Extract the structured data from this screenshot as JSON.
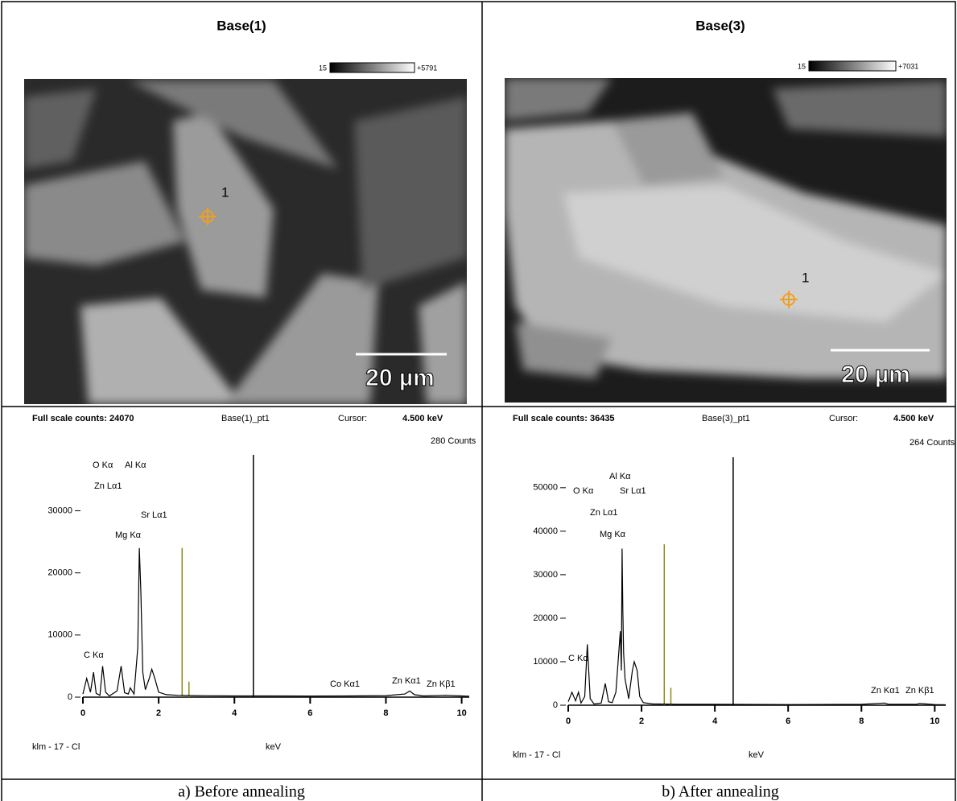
{
  "panels": [
    {
      "title": "Base(1)",
      "colorbar_min": "15",
      "colorbar_max": "+5791",
      "marker": "1",
      "scale_bar": "20 µm",
      "caption": "a)   Before annealing"
    },
    {
      "title": "Base(3)",
      "colorbar_min": "15",
      "colorbar_max": "+7031",
      "marker": "1",
      "scale_bar": "20 µm",
      "caption": "b)   After annealing"
    }
  ],
  "chart_data": [
    {
      "type": "line",
      "full_scale": "Full scale counts: 24070",
      "sample": "Base(1)_pt1",
      "cursor_label": "Cursor:",
      "cursor": {
        "value": 4.5,
        "label": "4.500 keV"
      },
      "counts": "280 Counts",
      "source": "klm - 17 - Cl",
      "x_label": "keV",
      "color": "#000000",
      "x": [
        0,
        0.1,
        0.2,
        0.28,
        0.35,
        0.45,
        0.52,
        0.6,
        0.7,
        0.9,
        1.01,
        1.1,
        1.2,
        1.25,
        1.35,
        1.45,
        1.49,
        1.53,
        1.58,
        1.65,
        1.75,
        1.82,
        1.9,
        2.0,
        2.2,
        2.5,
        3,
        4,
        5,
        6,
        7,
        8,
        8.5,
        8.63,
        8.75,
        9,
        9.57,
        10,
        10.2
      ],
      "values": [
        500,
        3000,
        800,
        4000,
        600,
        300,
        5000,
        800,
        200,
        1000,
        5000,
        700,
        500,
        1500,
        500,
        8000,
        24000,
        17000,
        4000,
        1200,
        3000,
        4500,
        3000,
        800,
        400,
        300,
        250,
        200,
        200,
        180,
        200,
        250,
        500,
        1000,
        400,
        200,
        300,
        200,
        150
      ],
      "lines": {
        "color": "#8a8a1a",
        "x": [
          2.62,
          2.8
        ],
        "values": [
          24000,
          2500
        ]
      },
      "peak_labels": [
        "O Kα",
        "Al Kα",
        "Zn Lα1",
        "Sr Lα1",
        "Mg Kα",
        "C Kα",
        "Co Kα1",
        "Zn Kα1",
        "Zn Kβ1"
      ],
      "xlim": [
        0,
        10.2
      ],
      "ylim": [
        0,
        39000
      ],
      "xticks": [
        0,
        2,
        4,
        6,
        8,
        10
      ],
      "yticks": [
        0,
        10000,
        20000,
        30000
      ]
    },
    {
      "type": "line",
      "full_scale": "Full scale counts: 36435",
      "sample": "Base(3)_pt1",
      "cursor_label": "Cursor:",
      "cursor": {
        "value": 4.5,
        "label": "4.500 keV"
      },
      "counts": "264 Counts",
      "source": "klm - 17 - Cl",
      "x_label": "keV",
      "color": "#000000",
      "x": [
        0,
        0.1,
        0.2,
        0.28,
        0.35,
        0.45,
        0.52,
        0.6,
        0.7,
        0.9,
        1.01,
        1.1,
        1.2,
        1.3,
        1.42,
        1.45,
        1.47,
        1.49,
        1.51,
        1.55,
        1.65,
        1.75,
        1.8,
        1.88,
        1.95,
        2.05,
        2.3,
        3,
        4,
        6,
        8,
        8.63,
        8.75,
        9.5,
        9.57,
        10,
        10.3
      ],
      "values": [
        800,
        3000,
        1000,
        3000,
        500,
        2000,
        14000,
        1500,
        300,
        500,
        5000,
        800,
        600,
        3000,
        17000,
        8000,
        36000,
        22000,
        12000,
        6000,
        1500,
        8000,
        10000,
        8000,
        2000,
        600,
        300,
        200,
        200,
        150,
        200,
        500,
        200,
        200,
        400,
        150,
        100
      ],
      "lines": {
        "color": "#8a8a1a",
        "x": [
          2.62,
          2.8
        ],
        "values": [
          37000,
          4000
        ]
      },
      "peak_labels": [
        "Al Kα",
        "O Kα",
        "Sr Lα1",
        "Zn Lα1",
        "Mg Kα",
        "C Kα",
        "Zn Kα1",
        "Zn Kβ1"
      ],
      "xlim": [
        0,
        10.3
      ],
      "ylim": [
        0,
        57000
      ],
      "xticks": [
        0,
        2,
        4,
        6,
        8,
        10
      ],
      "yticks": [
        0,
        10000,
        20000,
        30000,
        40000,
        50000
      ]
    }
  ]
}
